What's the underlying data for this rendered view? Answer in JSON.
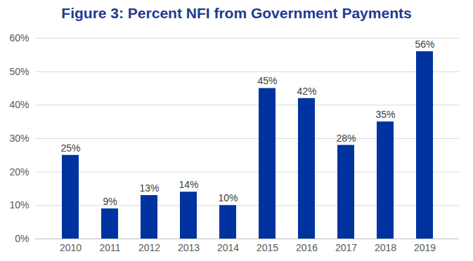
{
  "chart_data": {
    "type": "bar",
    "title": "Figure 3: Percent NFI from Government Payments",
    "categories": [
      "2010",
      "2011",
      "2012",
      "2013",
      "2014",
      "2015",
      "2016",
      "2017",
      "2018",
      "2019"
    ],
    "values": [
      25,
      9,
      13,
      14,
      10,
      45,
      42,
      28,
      35,
      56
    ],
    "value_labels": [
      "25%",
      "9%",
      "13%",
      "14%",
      "10%",
      "45%",
      "42%",
      "28%",
      "35%",
      "56%"
    ],
    "color": "#0033a0",
    "ylim": [
      0,
      60
    ],
    "yticks": [
      {
        "value": 0,
        "label": "0%"
      },
      {
        "value": 10,
        "label": "10%"
      },
      {
        "value": 20,
        "label": "20%"
      },
      {
        "value": 30,
        "label": "30%"
      },
      {
        "value": 40,
        "label": "40%"
      },
      {
        "value": 50,
        "label": "50%"
      },
      {
        "value": 60,
        "label": "60%"
      }
    ],
    "grid": true,
    "data_labels": true
  }
}
